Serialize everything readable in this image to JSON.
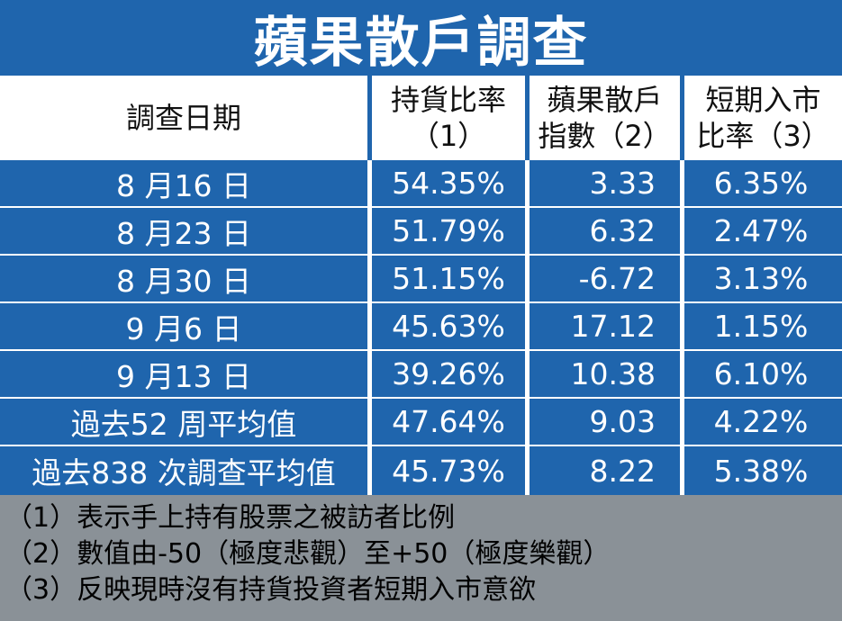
{
  "title": "蘋果散戶調查",
  "header": {
    "date": "調查日期",
    "holding_line1": "持貨比率",
    "holding_line2": "（1）",
    "index_line1": "蘋果散戶",
    "index_line2": "指數（2）",
    "entry_line1": "短期入市",
    "entry_line2": "比率（3）"
  },
  "rows": [
    {
      "date": "8 月16 日",
      "holding": "54.35%",
      "index": "3.33",
      "entry": "6.35%"
    },
    {
      "date": "8 月23 日",
      "holding": "51.79%",
      "index": "6.32",
      "entry": "2.47%"
    },
    {
      "date": "8 月30 日",
      "holding": "51.15%",
      "index": "-6.72",
      "entry": "3.13%"
    },
    {
      "date": "9 月6 日",
      "holding": "45.63%",
      "index": "17.12",
      "entry": "1.15%"
    },
    {
      "date": "9 月13 日",
      "holding": "39.26%",
      "index": "10.38",
      "entry": "6.10%"
    },
    {
      "date": "過去52 周平均值",
      "holding": "47.64%",
      "index": "9.03",
      "entry": "4.22%"
    },
    {
      "date": "過去838 次調查平均值",
      "holding": "45.73%",
      "index": "8.22",
      "entry": "5.38%"
    }
  ],
  "notes": [
    "（1）表示手上持有股票之被訪者比例",
    "（2）數值由-50（極度悲觀）至+50（極度樂觀）",
    "（3）反映現時沒有持貨投資者短期入市意欲"
  ],
  "colors": {
    "accent": "#1f65ad",
    "footer": "#8a9197"
  }
}
